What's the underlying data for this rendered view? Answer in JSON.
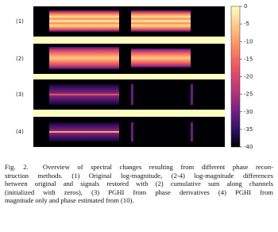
{
  "figure": {
    "panel_labels": [
      "(1)",
      "(2)",
      "(3)",
      "(4)"
    ],
    "colorbar": {
      "lim": [
        0,
        -40
      ],
      "ticks": [
        0,
        -5,
        -10,
        -15,
        -20,
        -25,
        -30,
        -35,
        -40
      ]
    }
  },
  "caption": {
    "lines": [
      "Fig. 2.  Overview of spectral changes resulting from different phase recon-",
      "struction methods. (1) Original log-magnitude, (2-4) log-magnitude differences",
      "between original and signals restored with (2) cumulative sum along channels",
      "(initialized with zeros), (3) PGHI from phase derivatives (4) PGHI from",
      "magnitude only and phase estimated from (10)."
    ]
  }
}
